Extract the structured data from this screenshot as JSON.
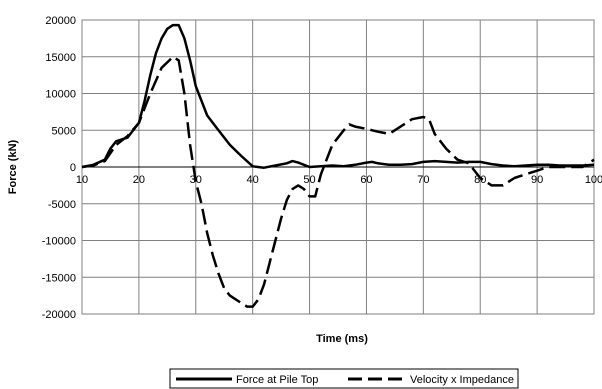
{
  "chart_data": {
    "type": "line",
    "xlabel": "Time (ms)",
    "ylabel": "Force (kN)",
    "xlim": [
      10,
      100
    ],
    "ylim": [
      -20000,
      20000
    ],
    "x_ticks": [
      10,
      20,
      30,
      40,
      50,
      60,
      70,
      80,
      90,
      100
    ],
    "y_ticks": [
      20000,
      15000,
      10000,
      5000,
      0,
      -5000,
      -10000,
      -15000,
      -20000
    ],
    "grid": true,
    "legend_position": "bottom",
    "series": [
      {
        "name": "Force at Pile Top",
        "color": "#000000",
        "style": "solid",
        "x": [
          10,
          12,
          14,
          15,
          16,
          18,
          20,
          21,
          22,
          23,
          24,
          25,
          26,
          27,
          28,
          29,
          30,
          32,
          34,
          36,
          38,
          40,
          42,
          44,
          46,
          47,
          48,
          50,
          52,
          54,
          56,
          58,
          60,
          61,
          62,
          64,
          66,
          68,
          70,
          72,
          74,
          76,
          78,
          80,
          82,
          84,
          86,
          88,
          90,
          92,
          94,
          96,
          98,
          100
        ],
        "values": [
          0,
          300,
          1000,
          2500,
          3500,
          4000,
          6000,
          9000,
          12500,
          15500,
          17500,
          18800,
          19300,
          19300,
          17500,
          14500,
          11000,
          7000,
          5000,
          3000,
          1500,
          100,
          -100,
          200,
          500,
          800,
          600,
          0,
          100,
          200,
          100,
          300,
          600,
          700,
          500,
          300,
          300,
          400,
          700,
          800,
          700,
          600,
          700,
          700,
          400,
          200,
          100,
          200,
          300,
          300,
          200,
          200,
          200,
          300
        ]
      },
      {
        "name": "Velocity x Impedance",
        "color": "#000000",
        "style": "dashed",
        "x": [
          10,
          12,
          14,
          16,
          18,
          20,
          22,
          24,
          26,
          27,
          28,
          29,
          30,
          31,
          32,
          33,
          34,
          35,
          36,
          37,
          38,
          39,
          40,
          41,
          42,
          43,
          44,
          45,
          46,
          47,
          48,
          49,
          50,
          51,
          52,
          54,
          56,
          57,
          58,
          60,
          62,
          64,
          66,
          68,
          70,
          71,
          72,
          74,
          76,
          78,
          80,
          82,
          84,
          86,
          88,
          90,
          92,
          94,
          96,
          98,
          100
        ],
        "values": [
          0,
          200,
          800,
          3000,
          4200,
          6000,
          10000,
          13500,
          15000,
          14500,
          10000,
          3000,
          -2000,
          -5000,
          -9000,
          -12000,
          -14500,
          -16500,
          -17500,
          -18000,
          -18500,
          -19000,
          -19000,
          -18000,
          -16000,
          -13000,
          -10000,
          -7000,
          -4500,
          -3000,
          -2500,
          -3000,
          -4000,
          -4000,
          -1000,
          3000,
          5000,
          5800,
          5500,
          5200,
          4800,
          4500,
          5500,
          6500,
          6800,
          6500,
          4500,
          2500,
          1000,
          500,
          -1500,
          -2500,
          -2500,
          -1500,
          -1000,
          -500,
          0,
          0,
          0,
          0,
          1000
        ]
      }
    ]
  }
}
